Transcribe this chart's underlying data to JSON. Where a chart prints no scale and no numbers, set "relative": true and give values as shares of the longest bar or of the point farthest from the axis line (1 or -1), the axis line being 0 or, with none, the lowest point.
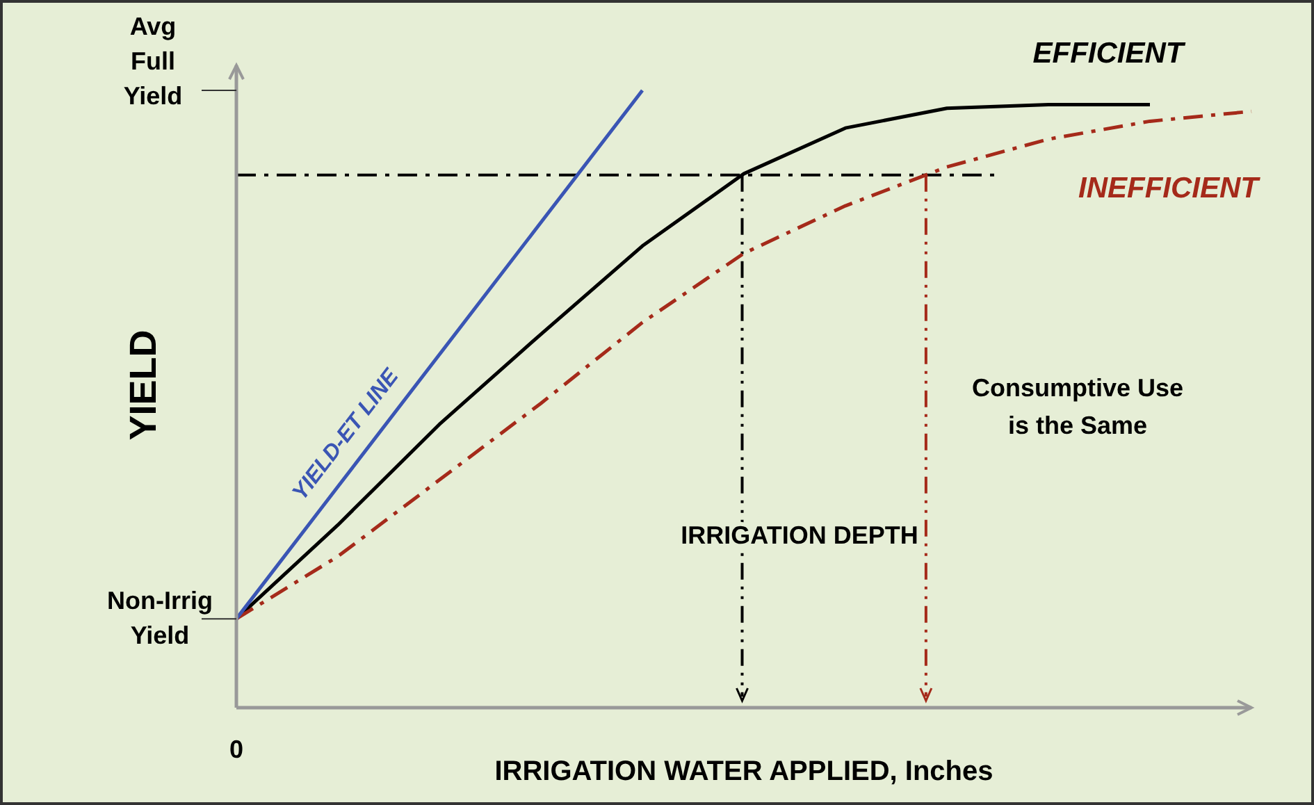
{
  "chart_data": {
    "type": "line",
    "relative": true,
    "xlabel": "IRRIGATION WATER APPLIED, Inches",
    "ylabel": "YIELD",
    "categories": [
      null,
      null,
      null,
      null,
      null,
      null,
      null,
      null,
      null,
      null,
      null
    ],
    "series": [
      {
        "name": "EFFICIENT",
        "color": "#000000",
        "values": [
          0.144,
          0.296,
          0.459,
          0.605,
          0.748,
          0.865,
          0.939,
          0.971,
          0.977,
          0.977,
          null
        ]
      },
      {
        "name": "INEFFICIENT",
        "color": "#a52a1a",
        "line_style": "dashed",
        "values": [
          0.144,
          0.245,
          0.369,
          0.493,
          0.624,
          0.736,
          0.813,
          0.876,
          0.921,
          0.95,
          0.966
        ]
      },
      {
        "name": "YIELD-ET LINE",
        "color": "#3a55b4",
        "values": [
          0.144,
          0.358,
          0.572,
          0.786,
          1,
          null,
          null,
          null,
          null,
          null,
          null
        ]
      }
    ],
    "ref_lines": [
      {
        "axis": "y",
        "value": 0.863,
        "color": "#000000",
        "line_style": "dashed"
      }
    ],
    "annotations": [
      "Consumptive Use is the Same",
      "IRRIGATION DEPTH",
      "0",
      "Non-Irrig Yield",
      "Avg Full Yield"
    ],
    "marker": "none"
  }
}
